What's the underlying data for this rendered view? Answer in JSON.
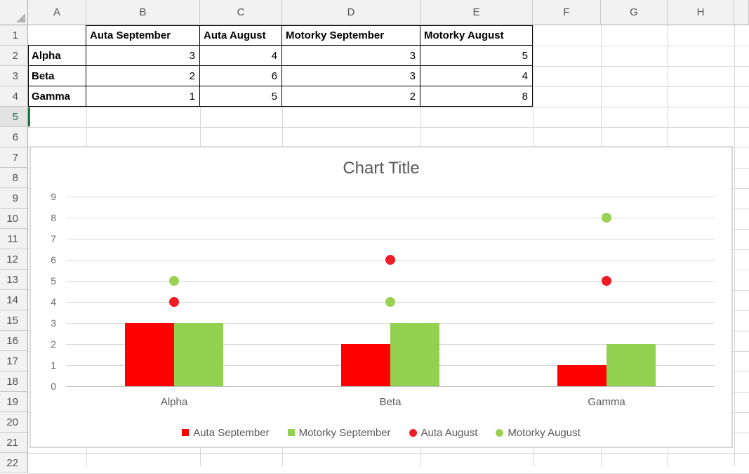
{
  "sheet": {
    "column_letters": [
      "A",
      "B",
      "C",
      "D",
      "E",
      "F",
      "G",
      "H",
      ""
    ],
    "row_numbers": [
      1,
      2,
      3,
      4,
      5,
      6,
      7,
      8,
      9,
      10,
      11,
      12,
      13,
      14,
      15,
      16,
      17,
      18,
      19,
      20,
      21,
      22
    ],
    "selected_row_header": 5,
    "active_cell": "A5"
  },
  "table": {
    "column_headers": [
      "Auta September",
      "Auta August",
      "Motorky September",
      "Motorky August"
    ],
    "rows": [
      {
        "label": "Alpha",
        "values": [
          3,
          4,
          3,
          5
        ]
      },
      {
        "label": "Beta",
        "values": [
          2,
          6,
          3,
          4
        ]
      },
      {
        "label": "Gamma",
        "values": [
          1,
          5,
          2,
          8
        ]
      }
    ]
  },
  "chart_data": {
    "type": "combo",
    "title": "Chart Title",
    "categories": [
      "Alpha",
      "Beta",
      "Gamma"
    ],
    "series": [
      {
        "name": "Auta September",
        "type": "bar",
        "color": "#FF0000",
        "values": [
          3,
          2,
          1
        ]
      },
      {
        "name": "Motorky September",
        "type": "bar",
        "color": "#92D050",
        "values": [
          3,
          3,
          2
        ]
      },
      {
        "name": "Auta August",
        "type": "scatter",
        "color": "#EE1C25",
        "values": [
          4,
          6,
          5
        ]
      },
      {
        "name": "Motorky August",
        "type": "scatter",
        "color": "#9BD153",
        "values": [
          5,
          4,
          8
        ]
      }
    ],
    "ylim": [
      0,
      9
    ],
    "yticks": [
      0,
      1,
      2,
      3,
      4,
      5,
      6,
      7,
      8,
      9
    ],
    "grid": true,
    "legend_position": "bottom",
    "colors": {
      "axis_text": "#595959",
      "gridline": "#D9D9D9",
      "title_text": "#595959"
    }
  }
}
